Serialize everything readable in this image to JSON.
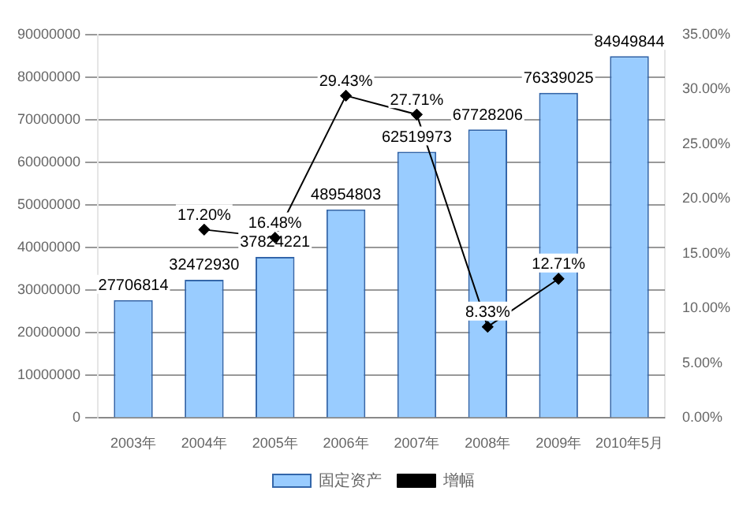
{
  "chart_data": {
    "type": "bar",
    "categories": [
      "2003年",
      "2004年",
      "2005年",
      "2006年",
      "2007年",
      "2008年",
      "2009年",
      "2010年5月"
    ],
    "series": [
      {
        "name": "固定资产",
        "color": "#99ccff",
        "values": [
          27706814,
          32472930,
          37824221,
          48954803,
          62519973,
          67728206,
          76339025,
          84949844
        ],
        "value_labels": [
          "27706814",
          "32472930",
          "37824221",
          "48954803",
          "62519973",
          "67728206",
          "76339025",
          "84949844"
        ]
      },
      {
        "name": "增幅",
        "type": "line",
        "axis": "y2",
        "color": "#000000",
        "values": [
          null,
          17.2,
          16.48,
          29.43,
          27.71,
          8.33,
          12.71,
          null
        ],
        "value_labels": [
          null,
          "17.20%",
          "16.48%",
          "29.43%",
          "27.71%",
          "8.33%",
          "12.71%",
          null
        ]
      }
    ],
    "ylim": [
      0,
      90000000
    ],
    "yticks": [
      0,
      10000000,
      20000000,
      30000000,
      40000000,
      50000000,
      60000000,
      70000000,
      80000000,
      90000000
    ],
    "y2lim": [
      0,
      35
    ],
    "y2ticks": [
      {
        "value": 0,
        "label": "0.00%"
      },
      {
        "value": 5,
        "label": "5.00%"
      },
      {
        "value": 10,
        "label": "10.00%"
      },
      {
        "value": 15,
        "label": "15.00%"
      },
      {
        "value": 20,
        "label": "20.00%"
      },
      {
        "value": 25,
        "label": "25.00%"
      },
      {
        "value": 30,
        "label": "30.00%"
      },
      {
        "value": 35,
        "label": "35.00%"
      }
    ],
    "grid": "y",
    "legend": "bottom",
    "marker": "diamond",
    "line_style": "solid"
  }
}
